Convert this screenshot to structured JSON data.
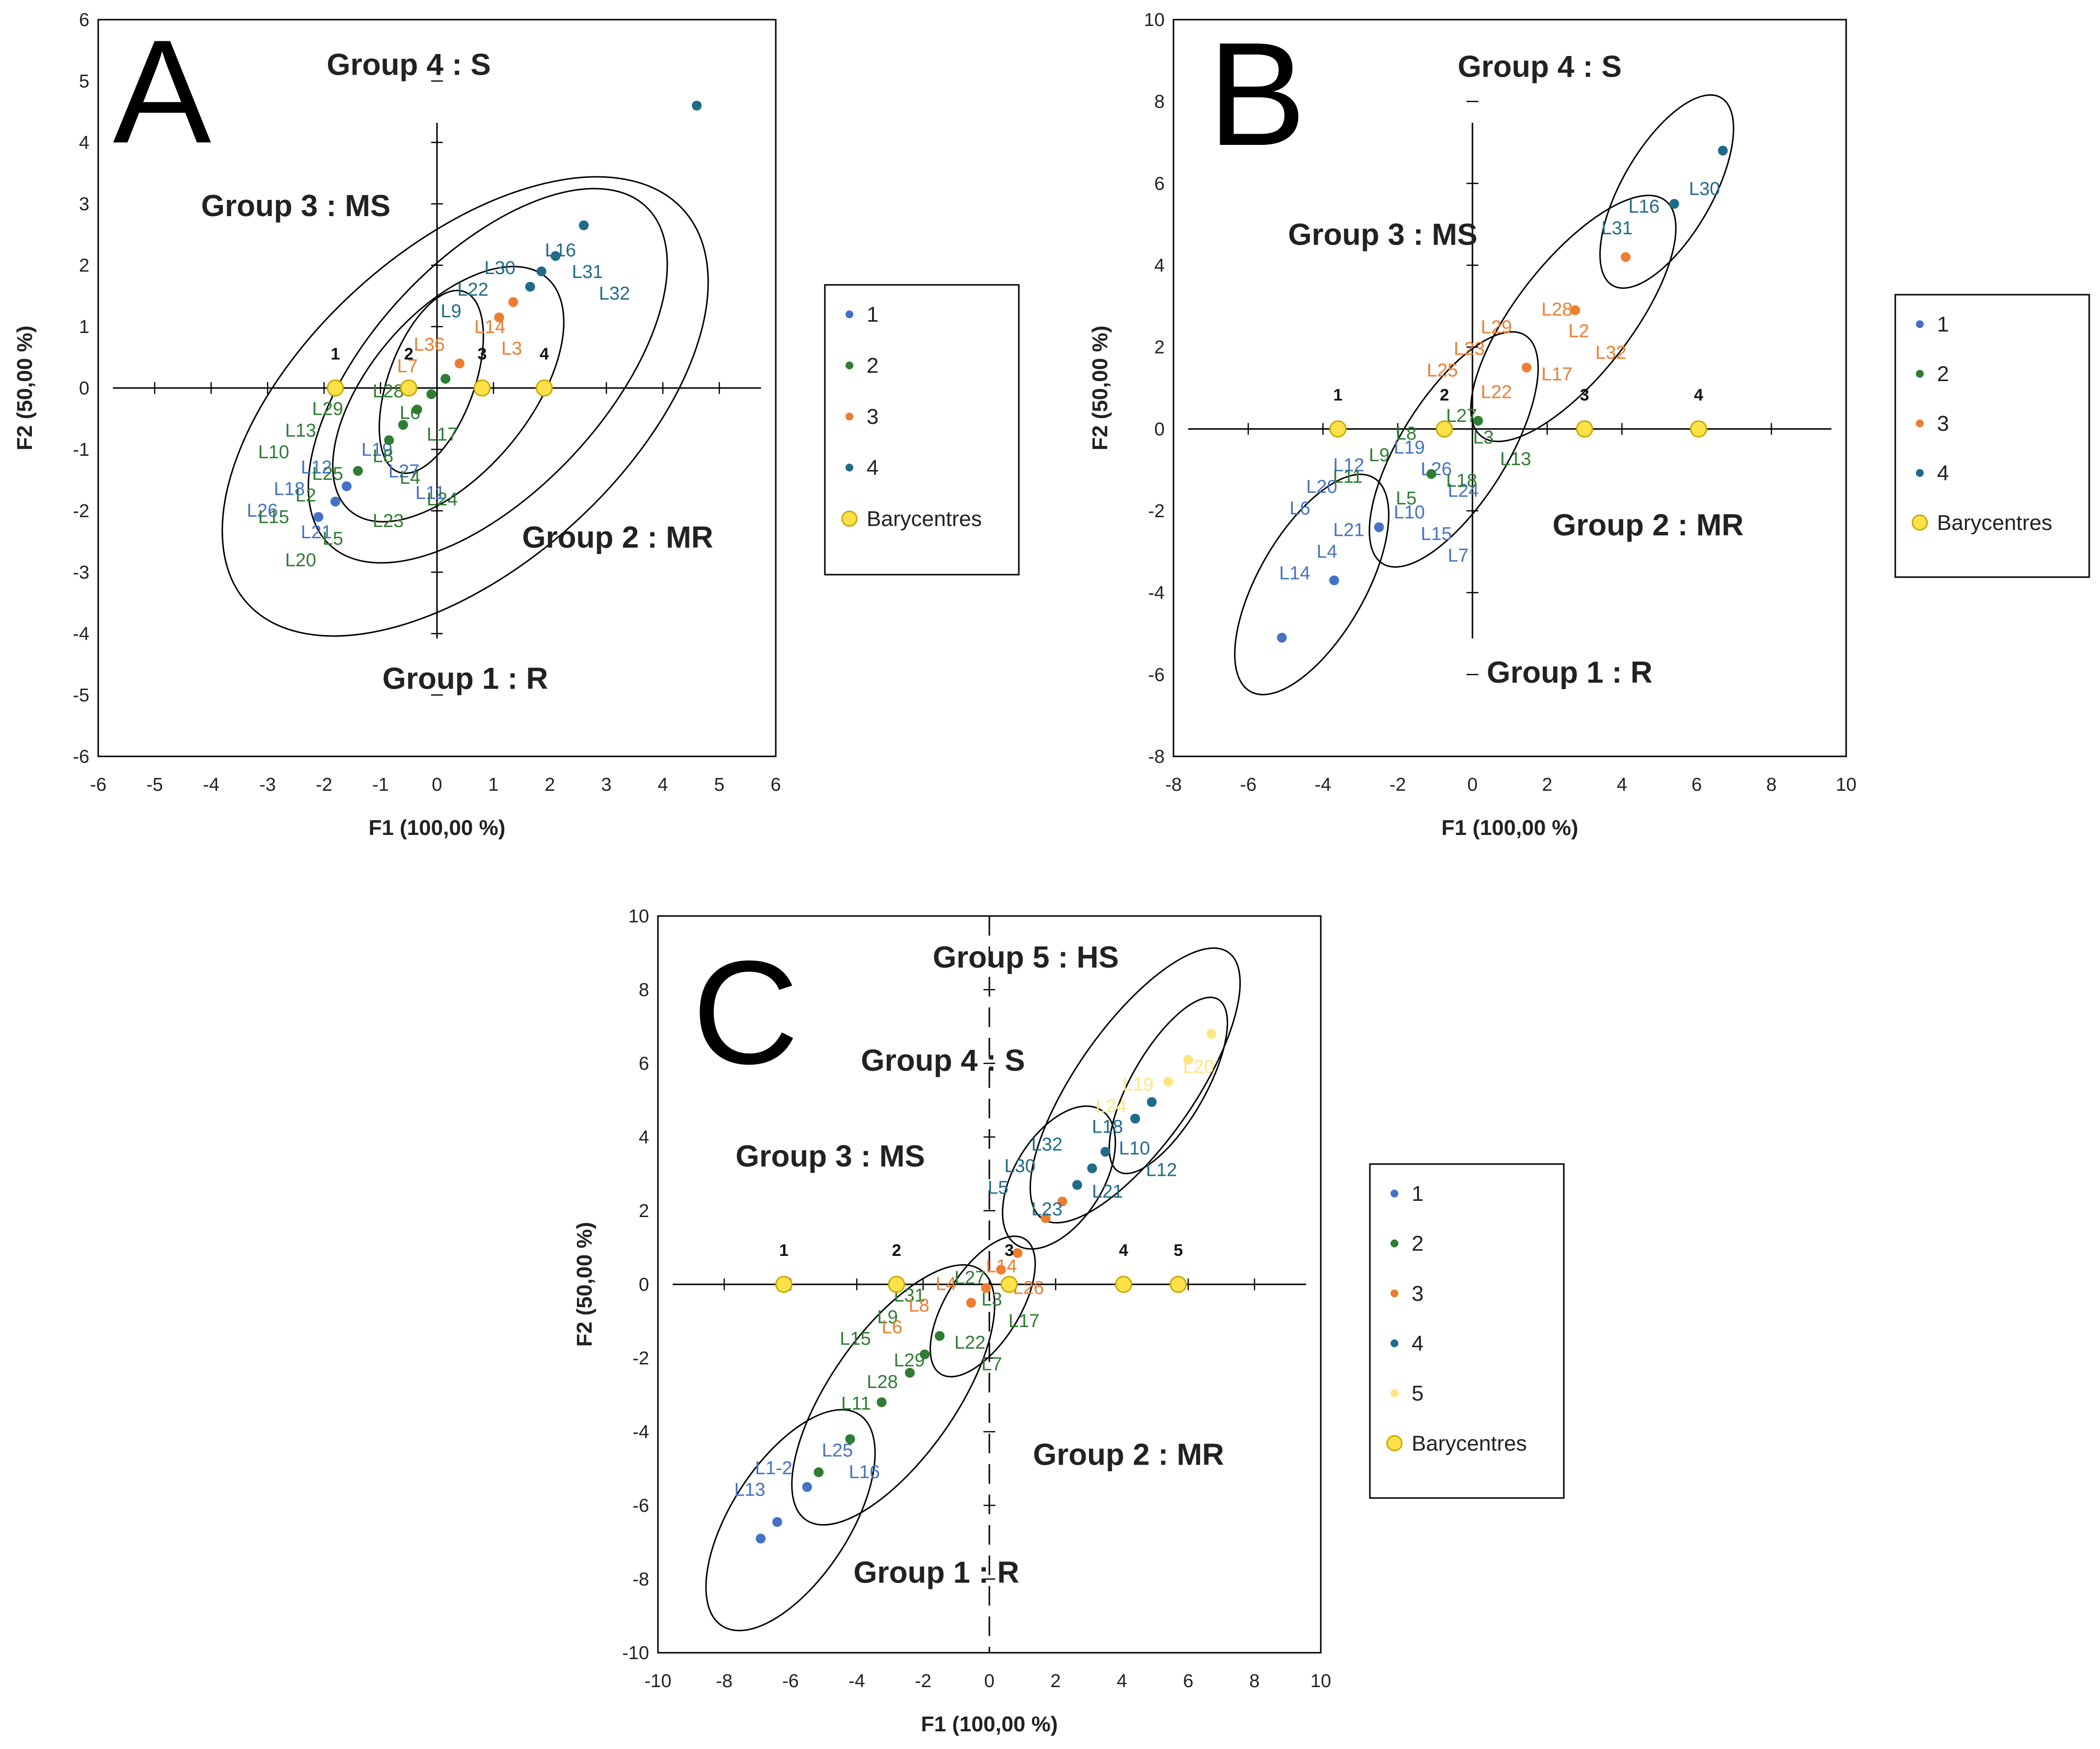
{
  "colors": {
    "1": "#4472c4",
    "2": "#2e7d32",
    "3": "#ed7d31",
    "4": "#1f6b8a",
    "5": "#ffe680",
    "bary_fill": "#ffe24a",
    "bary_stroke": "#c9a800"
  },
  "chart_data": [
    {
      "type": "scatter",
      "panel": "A",
      "xlabel": "F1 (100,00 %)",
      "ylabel": "F2 (50,00 %)",
      "xlim": [
        -6,
        6
      ],
      "ylim": [
        -6,
        6
      ],
      "ticks": [
        "-6",
        "-5",
        "-4",
        "-3",
        "-2",
        "-1",
        "0",
        "1",
        "2",
        "3",
        "4",
        "5",
        "6"
      ],
      "group_labels": [
        {
          "text": "Group 4 : S",
          "x": -0.5,
          "y": 5.1
        },
        {
          "text": "Group 3 : MS",
          "x": -2.5,
          "y": 2.8
        },
        {
          "text": "Group 2 : MR",
          "x": 3.2,
          "y": -2.6
        },
        {
          "text": "Group 1 : R",
          "x": 0.5,
          "y": -4.9
        }
      ],
      "legend": [
        "1",
        "2",
        "3",
        "4",
        "Barycentres"
      ],
      "barycentres": [
        {
          "label": "1",
          "x": -1.8,
          "y": 0
        },
        {
          "label": "2",
          "x": -0.5,
          "y": 0
        },
        {
          "label": "3",
          "x": 0.8,
          "y": 0
        },
        {
          "label": "4",
          "x": 1.9,
          "y": 0
        }
      ],
      "ellipses": [
        {
          "cx": 0.5,
          "cy": -0.3,
          "rx": 5.2,
          "ry": 2.6,
          "angle": 42
        },
        {
          "cx": 0.9,
          "cy": 0.2,
          "rx": 4.1,
          "ry": 1.9,
          "angle": 47
        },
        {
          "cx": 0.2,
          "cy": -0.1,
          "rx": 2.7,
          "ry": 1.3,
          "angle": 50
        },
        {
          "cx": -0.1,
          "cy": 0.1,
          "rx": 1.7,
          "ry": 0.7,
          "angle": 70
        }
      ],
      "points": [
        {
          "group": 1,
          "x": -1.6,
          "y": -1.6,
          "labels": [
            "L12",
            "L19",
            "L18",
            "L27",
            "L26",
            "L11",
            "L21"
          ]
        },
        {
          "group": 1,
          "x": -1.8,
          "y": -1.85,
          "labels": []
        },
        {
          "group": 1,
          "x": -2.1,
          "y": -2.1,
          "labels": []
        },
        {
          "group": 2,
          "x": -1.4,
          "y": -1.35,
          "labels": [
            "L29",
            "L28",
            "L13",
            "L6",
            "L10",
            "L17",
            "L25",
            "L8",
            "L2",
            "L4",
            "L15",
            "L24",
            "L5",
            "L23",
            "L20"
          ]
        },
        {
          "group": 2,
          "x": -0.85,
          "y": -0.85,
          "labels": []
        },
        {
          "group": 2,
          "x": -0.6,
          "y": -0.6,
          "labels": []
        },
        {
          "group": 2,
          "x": -0.35,
          "y": -0.35,
          "labels": []
        },
        {
          "group": 2,
          "x": -0.1,
          "y": -0.1,
          "labels": []
        },
        {
          "group": 2,
          "x": 0.15,
          "y": 0.15,
          "labels": []
        },
        {
          "group": 3,
          "x": 0.4,
          "y": 0.4,
          "labels": [
            "L36",
            "L14",
            "L7",
            "L3"
          ]
        },
        {
          "group": 3,
          "x": 1.1,
          "y": 1.15,
          "labels": []
        },
        {
          "group": 3,
          "x": 1.35,
          "y": 1.4,
          "labels": []
        },
        {
          "group": 4,
          "x": 1.65,
          "y": 1.65,
          "labels": [
            "L30",
            "L16",
            "L22",
            "L31",
            "L9",
            "L32"
          ]
        },
        {
          "group": 4,
          "x": 1.85,
          "y": 1.9,
          "labels": []
        },
        {
          "group": 4,
          "x": 2.1,
          "y": 2.15,
          "labels": []
        },
        {
          "group": 4,
          "x": 2.6,
          "y": 2.65,
          "labels": []
        },
        {
          "group": 4,
          "x": 4.6,
          "y": 4.6,
          "labels": []
        }
      ]
    },
    {
      "type": "scatter",
      "panel": "B",
      "xlabel": "F1 (100,00 %)",
      "ylabel": "F2 (50,00 %)",
      "xlim": [
        -8,
        10
      ],
      "ylim": [
        -8,
        10
      ],
      "ticks": [
        "-8",
        "-6",
        "-4",
        "-2",
        "0",
        "2",
        "4",
        "6",
        "8",
        "10"
      ],
      "group_labels": [
        {
          "text": "Group 4 : S",
          "x": 1.8,
          "y": 8.6
        },
        {
          "text": "Group 3 : MS",
          "x": -2.4,
          "y": 4.5
        },
        {
          "text": "Group 2 : MR",
          "x": 4.7,
          "y": -2.6
        },
        {
          "text": "Group 1 : R",
          "x": 2.6,
          "y": -6.2
        }
      ],
      "legend": [
        "1",
        "2",
        "3",
        "4",
        "Barycentres"
      ],
      "barycentres": [
        {
          "label": "1",
          "x": -3.6,
          "y": 0
        },
        {
          "label": "2",
          "x": -0.75,
          "y": 0
        },
        {
          "label": "3",
          "x": 3,
          "y": 0
        },
        {
          "label": "4",
          "x": 6.05,
          "y": 0
        }
      ],
      "ellipses": [
        {
          "cx": 5.2,
          "cy": 5.8,
          "rx": 2.9,
          "ry": 1.1,
          "angle": 60
        },
        {
          "cx": 2.7,
          "cy": 2.7,
          "rx": 4.0,
          "ry": 1.4,
          "angle": 52
        },
        {
          "cx": -0.5,
          "cy": -0.5,
          "rx": 3.6,
          "ry": 1.3,
          "angle": 58
        },
        {
          "cx": -4.3,
          "cy": -3.8,
          "rx": 3.3,
          "ry": 1.3,
          "angle": 60
        }
      ],
      "points": [
        {
          "group": 1,
          "x": -2.5,
          "y": -2.4,
          "labels": [
            "L12",
            "L19",
            "L20",
            "L26",
            "L6",
            "L24",
            "L21",
            "L10",
            "L4",
            "L15",
            "L14",
            "L7"
          ]
        },
        {
          "group": 1,
          "x": -3.7,
          "y": -3.7,
          "labels": []
        },
        {
          "group": 1,
          "x": -5.1,
          "y": -5.1,
          "labels": []
        },
        {
          "group": 2,
          "x": -1.1,
          "y": -1.1,
          "labels": [
            "L8",
            "L27",
            "L9",
            "L3",
            "L11",
            "L13",
            "L5",
            "L18"
          ]
        },
        {
          "group": 2,
          "x": 0.15,
          "y": 0.2,
          "labels": []
        },
        {
          "group": 3,
          "x": 1.45,
          "y": 1.5,
          "labels": [
            "L29",
            "L28",
            "L23",
            "L2",
            "L25",
            "L32",
            "L22",
            "L17"
          ]
        },
        {
          "group": 3,
          "x": 2.75,
          "y": 2.9,
          "labels": []
        },
        {
          "group": 3,
          "x": 4.1,
          "y": 4.2,
          "labels": []
        },
        {
          "group": 4,
          "x": 5.4,
          "y": 5.5,
          "labels": [
            "L16",
            "L30",
            "L31"
          ]
        },
        {
          "group": 4,
          "x": 6.7,
          "y": 6.8,
          "labels": []
        }
      ]
    },
    {
      "type": "scatter",
      "panel": "C",
      "xlabel": "F1 (100,00 %)",
      "ylabel": "F2 (50,00 %)",
      "xlim": [
        -10,
        10
      ],
      "ylim": [
        -10,
        10
      ],
      "ticks": [
        "-10",
        "-8",
        "-6",
        "-4",
        "-2",
        "0",
        "2",
        "4",
        "6",
        "8",
        "10"
      ],
      "group_labels": [
        {
          "text": "Group 5 : HS",
          "x": 1.1,
          "y": 8.6
        },
        {
          "text": "Group 4 : S",
          "x": -1.4,
          "y": 5.8
        },
        {
          "text": "Group 3 : MS",
          "x": -4.8,
          "y": 3.2
        },
        {
          "text": "Group 2 : MR",
          "x": 4.2,
          "y": -4.9
        },
        {
          "text": "Group 1 : R",
          "x": -1.6,
          "y": -8.1
        }
      ],
      "legend": [
        "1",
        "2",
        "3",
        "4",
        "5",
        "Barycentres"
      ],
      "barycentres": [
        {
          "label": "1",
          "x": -6.2,
          "y": 0
        },
        {
          "label": "2",
          "x": -2.8,
          "y": 0
        },
        {
          "label": "3",
          "x": 0.6,
          "y": 0
        },
        {
          "label": "4",
          "x": 4.05,
          "y": 0
        },
        {
          "label": "5",
          "x": 5.7,
          "y": 0
        }
      ],
      "ellipses": [
        {
          "cx": 4.4,
          "cy": 5.4,
          "rx": 4.9,
          "ry": 1.6,
          "angle": 55
        },
        {
          "cx": 5.4,
          "cy": 5.4,
          "rx": 3.0,
          "ry": 1.0,
          "angle": 60
        },
        {
          "cx": 2.1,
          "cy": 2.9,
          "rx": 2.4,
          "ry": 1.2,
          "angle": 58
        },
        {
          "cx": -0.2,
          "cy": -0.6,
          "rx": 2.4,
          "ry": 1.0,
          "angle": 58
        },
        {
          "cx": -2.9,
          "cy": -3.0,
          "rx": 4.6,
          "ry": 1.7,
          "angle": 55
        },
        {
          "cx": -6.0,
          "cy": -6.4,
          "rx": 3.8,
          "ry": 1.6,
          "angle": 57
        }
      ],
      "points": [
        {
          "group": 1,
          "x": -5.5,
          "y": -5.5,
          "labels": [
            "L1-2",
            "L25",
            "L13",
            "L16"
          ]
        },
        {
          "group": 1,
          "x": -6.4,
          "y": -6.45,
          "labels": []
        },
        {
          "group": 1,
          "x": -6.9,
          "y": -6.9,
          "labels": []
        },
        {
          "group": 2,
          "x": -1.5,
          "y": -1.4,
          "labels": [
            "L31",
            "L27",
            "L9",
            "L3",
            "L15",
            "L17",
            "L29",
            "L22",
            "L28",
            "L7",
            "L11"
          ]
        },
        {
          "group": 2,
          "x": -1.95,
          "y": -1.9,
          "labels": []
        },
        {
          "group": 2,
          "x": -2.4,
          "y": -2.4,
          "labels": []
        },
        {
          "group": 2,
          "x": -3.25,
          "y": -3.2,
          "labels": []
        },
        {
          "group": 2,
          "x": -4.2,
          "y": -4.2,
          "labels": []
        },
        {
          "group": 2,
          "x": -5.15,
          "y": -5.1,
          "labels": []
        },
        {
          "group": 3,
          "x": -0.55,
          "y": -0.5,
          "labels": [
            "L4",
            "L14",
            "L8",
            "L26",
            "L6"
          ]
        },
        {
          "group": 3,
          "x": -0.1,
          "y": -0.1,
          "labels": []
        },
        {
          "group": 3,
          "x": 0.35,
          "y": 0.4,
          "labels": []
        },
        {
          "group": 3,
          "x": 0.85,
          "y": 0.85,
          "labels": []
        },
        {
          "group": 3,
          "x": 1.7,
          "y": 1.8,
          "labels": []
        },
        {
          "group": 3,
          "x": 2.2,
          "y": 2.25,
          "labels": []
        },
        {
          "group": 4,
          "x": 2.65,
          "y": 2.7,
          "labels": [
            "L32",
            "L18",
            "L30",
            "L10",
            "L5",
            "L12",
            "L23",
            "L21"
          ]
        },
        {
          "group": 4,
          "x": 3.1,
          "y": 3.15,
          "labels": []
        },
        {
          "group": 4,
          "x": 3.5,
          "y": 3.6,
          "labels": []
        },
        {
          "group": 4,
          "x": 4.4,
          "y": 4.5,
          "labels": []
        },
        {
          "group": 4,
          "x": 4.9,
          "y": 4.95,
          "labels": []
        },
        {
          "group": 5,
          "x": 5.4,
          "y": 5.5,
          "labels": [
            "L19",
            "L20",
            "L24"
          ]
        },
        {
          "group": 5,
          "x": 6.0,
          "y": 6.1,
          "labels": []
        },
        {
          "group": 5,
          "x": 6.7,
          "y": 6.8,
          "labels": []
        }
      ]
    }
  ]
}
